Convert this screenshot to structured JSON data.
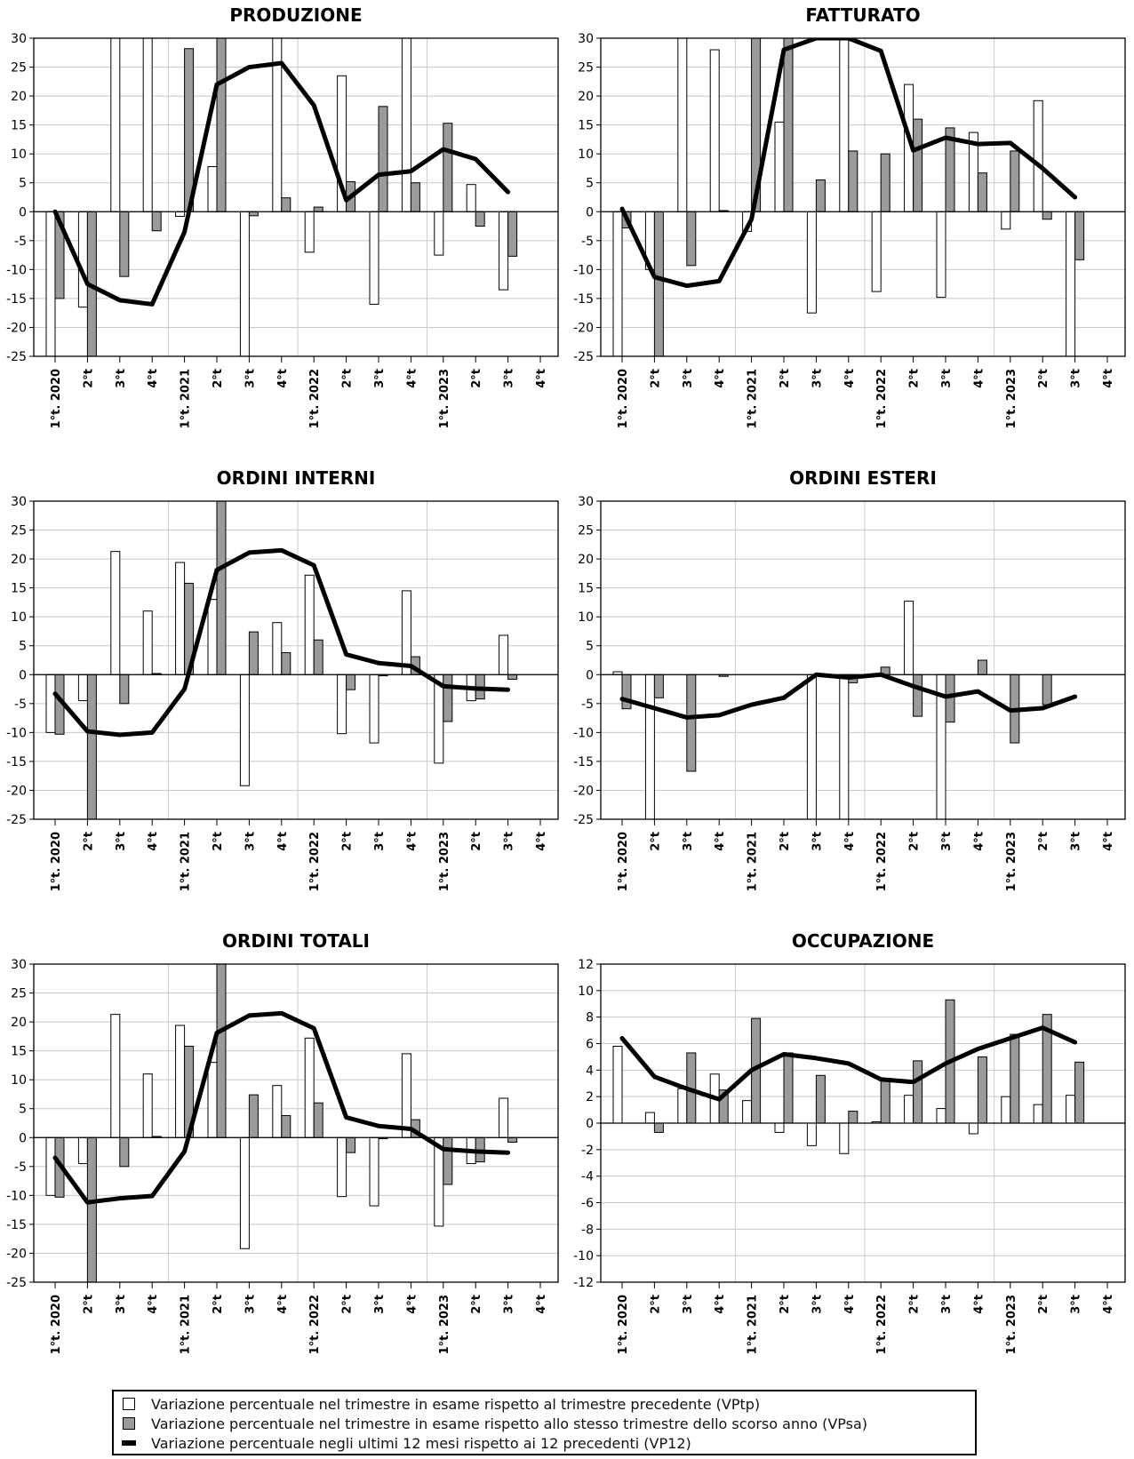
{
  "x_labels": [
    "1°t. 2020",
    "2°t",
    "3°t",
    "4°t",
    "1°t. 2021",
    "2°t",
    "3°t",
    "4°t",
    "1°t. 2022",
    "2°t",
    "3°t",
    "4°t",
    "1°t. 2023",
    "2°t",
    "3°t",
    "4°t"
  ],
  "colors": {
    "vptp": "#ffffff",
    "vpsa": "#9a9a9a",
    "vp12": "#000000",
    "grid": "#c8c8c8",
    "axis": "#000000"
  },
  "chart_data": [
    {
      "type": "bar",
      "title": "PRODUZIONE",
      "ylim": [
        -25,
        30
      ],
      "yticks": [
        30,
        25,
        20,
        15,
        10,
        5,
        0,
        -5,
        -10,
        -15,
        -20,
        -25
      ],
      "series": [
        {
          "name": "Variazione percentuale nel trimestre in esame rispetto al trimestre precedente (VPtp)",
          "kind": "bar",
          "values": [
            -26,
            -16.5,
            31,
            31,
            -0.8,
            7.8,
            -26,
            31,
            -7,
            23.5,
            -16,
            31,
            -7.5,
            4.7,
            -13.5,
            null
          ]
        },
        {
          "name": "Variazione percentuale nel trimestre in esame rispetto allo stesso trimestre dello scorso anno (VPsa)",
          "kind": "bar",
          "values": [
            -15,
            -26,
            -11.2,
            -3.3,
            28.2,
            31,
            -0.7,
            2.4,
            0.8,
            5.2,
            18.2,
            5,
            15.3,
            -2.5,
            -7.7,
            null
          ]
        },
        {
          "name": "Variazione percentuale negli ultimi 12 mesi rispetto ai 12 precedenti (VP12)",
          "kind": "line",
          "values": [
            0,
            -12.5,
            -15.3,
            -16,
            -3.5,
            22,
            25,
            25.7,
            18.4,
            2,
            6.4,
            7,
            10.8,
            9.1,
            3.4,
            null
          ]
        }
      ]
    },
    {
      "type": "bar",
      "title": "FATTURATO",
      "ylim": [
        -25,
        30
      ],
      "yticks": [
        30,
        25,
        20,
        15,
        10,
        5,
        0,
        -5,
        -10,
        -15,
        -20,
        -25
      ],
      "series": [
        {
          "name": "Variazione percentuale nel trimestre in esame rispetto al trimestre precedente (VPtp)",
          "kind": "bar",
          "values": [
            -26,
            -10,
            31,
            28,
            -3.4,
            15.5,
            -17.5,
            31,
            -13.8,
            22,
            -14.8,
            13.7,
            -3,
            19.2,
            -26,
            null
          ]
        },
        {
          "name": "Variazione percentuale nel trimestre in esame rispetto allo stesso trimestre dello scorso anno (VPsa)",
          "kind": "bar",
          "values": [
            -2.8,
            -26,
            -9.3,
            0.2,
            31,
            31,
            5.5,
            10.5,
            10,
            16,
            14.5,
            6.7,
            10.5,
            -1.3,
            -8.3,
            null
          ]
        },
        {
          "name": "Variazione percentuale negli ultimi 12 mesi rispetto ai 12 precedenti (VP12)",
          "kind": "line",
          "values": [
            0.5,
            -11.3,
            -12.8,
            -12,
            -1.3,
            28,
            31,
            31,
            27.8,
            10.6,
            12.8,
            11.7,
            11.9,
            7.5,
            2.5,
            null
          ]
        }
      ]
    },
    {
      "type": "bar",
      "title": "ORDINI INTERNI",
      "ylim": [
        -25,
        30
      ],
      "yticks": [
        30,
        25,
        20,
        15,
        10,
        5,
        0,
        -5,
        -10,
        -15,
        -20,
        -25
      ],
      "series": [
        {
          "name": "Variazione percentuale nel trimestre in esame rispetto al trimestre precedente (VPtp)",
          "kind": "bar",
          "values": [
            -10,
            -4.5,
            21.3,
            11,
            19.4,
            13,
            -19.2,
            9,
            17.2,
            -10.2,
            -11.8,
            14.5,
            -15.3,
            -4.5,
            6.8,
            null
          ]
        },
        {
          "name": "Variazione percentuale nel trimestre in esame rispetto allo stesso trimestre dello scorso anno (VPsa)",
          "kind": "bar",
          "values": [
            -10.3,
            -26,
            -5,
            0.2,
            15.8,
            31,
            7.4,
            3.8,
            6,
            -2.6,
            -0.2,
            3.1,
            -8.1,
            -4.2,
            -0.8,
            null
          ]
        },
        {
          "name": "Variazione percentuale negli ultimi 12 mesi rispetto ai 12 precedenti (VP12)",
          "kind": "line",
          "values": [
            -3.3,
            -9.8,
            -10.4,
            -10,
            -2.5,
            18.1,
            21.1,
            21.5,
            18.9,
            3.5,
            2,
            1.5,
            -2,
            -2.4,
            -2.6,
            null
          ]
        }
      ]
    },
    {
      "type": "bar",
      "title": "ORDINI ESTERI",
      "ylim": [
        -25,
        30
      ],
      "yticks": [
        30,
        25,
        20,
        15,
        10,
        5,
        0,
        -5,
        -10,
        -15,
        -20,
        -25
      ],
      "series": [
        {
          "name": "Variazione percentuale nel trimestre in esame rispetto al trimestre precedente (VPtp)",
          "kind": "bar",
          "values": [
            0.5,
            -26,
            0,
            0,
            0,
            0,
            -26,
            -26,
            0,
            12.7,
            -26,
            0,
            0,
            0,
            0,
            null
          ]
        },
        {
          "name": "Variazione percentuale nel trimestre in esame rispetto allo stesso trimestre dello scorso anno (VPsa)",
          "kind": "bar",
          "values": [
            -5.9,
            -4,
            -16.7,
            -0.3,
            0,
            0,
            0,
            -1.4,
            1.3,
            -7.2,
            -8.2,
            2.5,
            -11.8,
            -5.2,
            0,
            null
          ]
        },
        {
          "name": "Variazione percentuale negli ultimi 12 mesi rispetto ai 12 precedenti (VP12)",
          "kind": "line",
          "values": [
            -4.2,
            -5.8,
            -7.4,
            -7,
            -5.2,
            -4,
            0,
            -0.5,
            0,
            -2,
            -3.8,
            -2.9,
            -6.2,
            -5.8,
            -3.8,
            null
          ]
        }
      ]
    },
    {
      "type": "bar",
      "title": "ORDINI TOTALI",
      "ylim": [
        -25,
        30
      ],
      "yticks": [
        30,
        25,
        20,
        15,
        10,
        5,
        0,
        -5,
        -10,
        -15,
        -20,
        -25
      ],
      "series": [
        {
          "name": "Variazione percentuale nel trimestre in esame rispetto al trimestre precedente (VPtp)",
          "kind": "bar",
          "values": [
            -10,
            -4.5,
            21.3,
            11,
            19.4,
            13,
            -19.2,
            9,
            17.2,
            -10.2,
            -11.8,
            14.5,
            -15.3,
            -4.5,
            6.8,
            null
          ]
        },
        {
          "name": "Variazione percentuale nel trimestre in esame rispetto allo stesso trimestre dello scorso anno (VPsa)",
          "kind": "bar",
          "values": [
            -10.3,
            -26,
            -5,
            0.2,
            15.8,
            31,
            7.4,
            3.8,
            6,
            -2.6,
            -0.2,
            3.1,
            -8.1,
            -4.2,
            -0.8,
            null
          ]
        },
        {
          "name": "Variazione percentuale negli ultimi 12 mesi rispetto ai 12 precedenti (VP12)",
          "kind": "line",
          "values": [
            -3.5,
            -11.2,
            -10.5,
            -10.1,
            -2.4,
            18.1,
            21.1,
            21.5,
            18.9,
            3.5,
            2,
            1.5,
            -2,
            -2.4,
            -2.6,
            null
          ]
        }
      ]
    },
    {
      "type": "bar",
      "title": "OCCUPAZIONE",
      "ylim": [
        -12,
        12
      ],
      "yticks": [
        12,
        10,
        8,
        6,
        4,
        2,
        0,
        -2,
        -4,
        -6,
        -8,
        -10,
        -12
      ],
      "series": [
        {
          "name": "Variazione percentuale nel trimestre in esame rispetto al trimestre precedente (VPtp)",
          "kind": "bar",
          "values": [
            5.8,
            0.8,
            2.6,
            3.7,
            1.7,
            -0.7,
            -1.7,
            -2.3,
            0.1,
            2.1,
            1.1,
            -0.8,
            2,
            1.4,
            2.1,
            null
          ]
        },
        {
          "name": "Variazione percentuale nel trimestre in esame rispetto allo stesso trimestre dello scorso anno (VPsa)",
          "kind": "bar",
          "values": [
            0,
            -0.7,
            5.3,
            2.5,
            7.9,
            5.3,
            3.6,
            0.9,
            3.3,
            4.7,
            9.3,
            5,
            6.7,
            8.2,
            4.6,
            null
          ]
        },
        {
          "name": "Variazione percentuale negli ultimi 12 mesi rispetto ai 12 precedenti (VP12)",
          "kind": "line",
          "values": [
            6.4,
            3.5,
            2.6,
            1.8,
            4,
            5.2,
            4.9,
            4.5,
            3.3,
            3.1,
            4.5,
            5.6,
            6.4,
            7.2,
            6.1,
            null
          ]
        }
      ]
    }
  ],
  "legend": {
    "vptp": "Variazione percentuale nel trimestre in esame rispetto al trimestre precedente (VPtp)",
    "vpsa": "Variazione percentuale nel trimestre in esame rispetto allo stesso trimestre dello scorso anno (VPsa)",
    "vp12": "Variazione percentuale negli ultimi 12 mesi rispetto ai 12 precedenti (VP12)"
  }
}
